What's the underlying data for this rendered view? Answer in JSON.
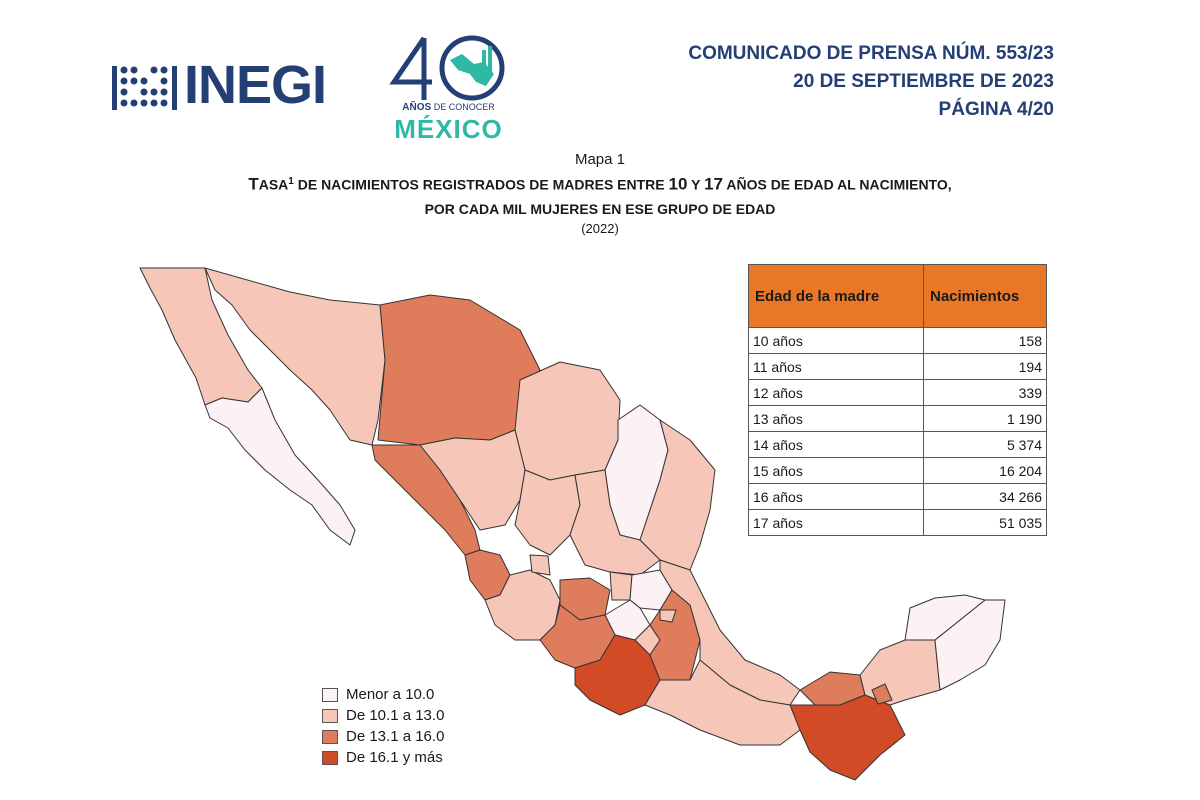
{
  "header": {
    "inegi_logo": "INEGI",
    "logo_40": {
      "number": "40",
      "subtitle_bold": "AÑOS",
      "subtitle_rest": " DE CONOCER",
      "country": "MÉXICO"
    },
    "press_lines": [
      "COMUNICADO DE PRENSA NÚM. 553/23",
      "20 DE SEPTIEMBRE DE 2023",
      "PÁGINA 4/20"
    ]
  },
  "map": {
    "label": "Mapa 1",
    "title_line1_parts": {
      "a": "T",
      "b": "ASA",
      "sup": "1",
      "c": " DE NACIMIENTOS REGISTRADOS DE MADRES ENTRE ",
      "d": "10",
      "e": " Y ",
      "f": "17",
      "g": " AÑOS DE EDAD AL NACIMIENTO,"
    },
    "title_line2": "POR CADA MIL MUJERES EN ESE GRUPO DE EDAD",
    "year": "(2022)",
    "legend": [
      {
        "label": "Menor a 10.0",
        "color": "#fcf1f4"
      },
      {
        "label": "De 10.1 a 13.0",
        "color": "#f6c7b8"
      },
      {
        "label": "De 13.1 a 16.0",
        "color": "#df7c5c"
      },
      {
        "label": "De 16.1 y más",
        "color": "#d14b26"
      }
    ]
  },
  "table": {
    "headers": [
      "Edad de la madre",
      "Nacimientos"
    ],
    "header_color": "#e87827",
    "rows": [
      [
        "10 años",
        "158"
      ],
      [
        "11 años",
        "194"
      ],
      [
        "12 años",
        "339"
      ],
      [
        "13 años",
        "1 190"
      ],
      [
        "14 años",
        "5 374"
      ],
      [
        "15 años",
        "16 204"
      ],
      [
        "16 años",
        "34 266"
      ],
      [
        "17 años",
        "51 035"
      ]
    ]
  },
  "colors": {
    "brand_navy": "#233f73",
    "brand_teal": "#2fb8a6",
    "accent_orange": "#e87827"
  }
}
